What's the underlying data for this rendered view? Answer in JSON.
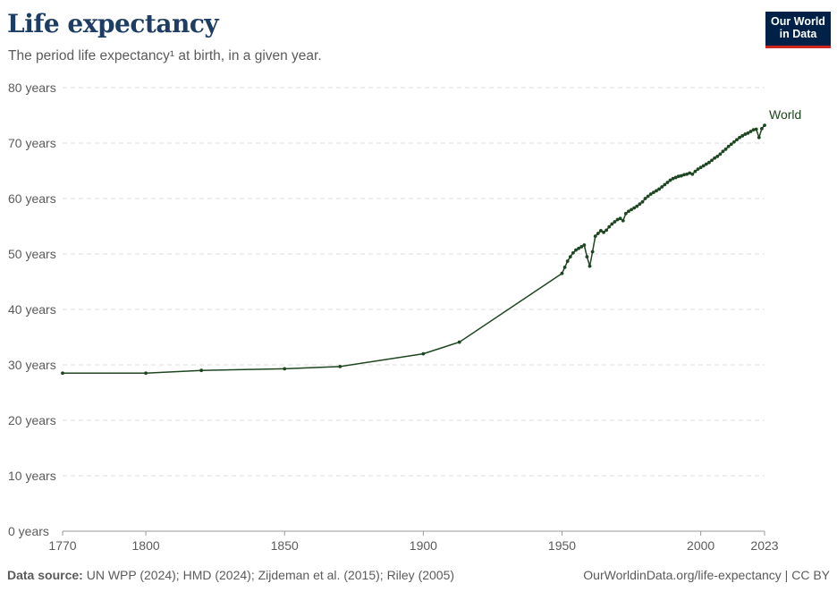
{
  "header": {
    "title": "Life expectancy",
    "subtitle": "The period life expectancy¹ at birth, in a given year.",
    "logo_line1": "Our World",
    "logo_line2": "in Data"
  },
  "footer": {
    "source_label": "Data source:",
    "source_text": " UN WPP (2024); HMD (2024); Zijdeman et al. (2015); Riley (2005)",
    "url_text": "OurWorldinData.org/life-expectancy | CC BY"
  },
  "colors": {
    "line": "#1e4620",
    "grid": "#dddddd",
    "axis": "#999999",
    "logo_bg": "#002147",
    "logo_accent": "#ce261e"
  },
  "chart_data": {
    "type": "line",
    "title": "Life expectancy",
    "subtitle": "The period life expectancy¹ at birth, in a given year.",
    "xlabel": "",
    "ylabel": "",
    "xlim": [
      1770,
      2023
    ],
    "ylim": [
      0,
      80
    ],
    "x_ticks": [
      1770,
      1800,
      1850,
      1900,
      1950,
      2000,
      2023
    ],
    "y_ticks": [
      0,
      10,
      20,
      30,
      40,
      50,
      60,
      70,
      80
    ],
    "y_tick_suffix": " years",
    "grid": "horizontal dashed",
    "legend": "label at line end (right)",
    "series": [
      {
        "name": "World",
        "x": [
          1770,
          1800,
          1820,
          1850,
          1870,
          1900,
          1913,
          1950,
          1951,
          1952,
          1953,
          1954,
          1955,
          1956,
          1957,
          1958,
          1959,
          1960,
          1961,
          1962,
          1963,
          1964,
          1965,
          1966,
          1967,
          1968,
          1969,
          1970,
          1971,
          1972,
          1973,
          1974,
          1975,
          1976,
          1977,
          1978,
          1979,
          1980,
          1981,
          1982,
          1983,
          1984,
          1985,
          1986,
          1987,
          1988,
          1989,
          1990,
          1991,
          1992,
          1993,
          1994,
          1995,
          1996,
          1997,
          1998,
          1999,
          2000,
          2001,
          2002,
          2003,
          2004,
          2005,
          2006,
          2007,
          2008,
          2009,
          2010,
          2011,
          2012,
          2013,
          2014,
          2015,
          2016,
          2017,
          2018,
          2019,
          2020,
          2021,
          2022,
          2023
        ],
        "values": [
          28.5,
          28.5,
          29.0,
          29.3,
          29.7,
          32.0,
          34.1,
          46.5,
          47.6,
          48.7,
          49.5,
          50.2,
          50.7,
          51.0,
          51.3,
          51.6,
          49.5,
          47.8,
          50.4,
          53.2,
          53.7,
          54.2,
          53.9,
          54.3,
          54.9,
          55.4,
          55.8,
          56.2,
          56.4,
          56.0,
          57.3,
          57.7,
          58.0,
          58.3,
          58.6,
          59.0,
          59.4,
          60.0,
          60.4,
          60.8,
          61.1,
          61.4,
          61.7,
          62.1,
          62.5,
          62.9,
          63.3,
          63.6,
          63.8,
          64.0,
          64.1,
          64.3,
          64.4,
          64.6,
          64.4,
          64.9,
          65.3,
          65.6,
          65.9,
          66.2,
          66.5,
          66.9,
          67.3,
          67.6,
          68.0,
          68.5,
          68.9,
          69.4,
          69.8,
          70.2,
          70.6,
          71.0,
          71.3,
          71.6,
          71.8,
          72.1,
          72.4,
          72.5,
          71.0,
          72.6,
          73.2
        ]
      }
    ]
  }
}
